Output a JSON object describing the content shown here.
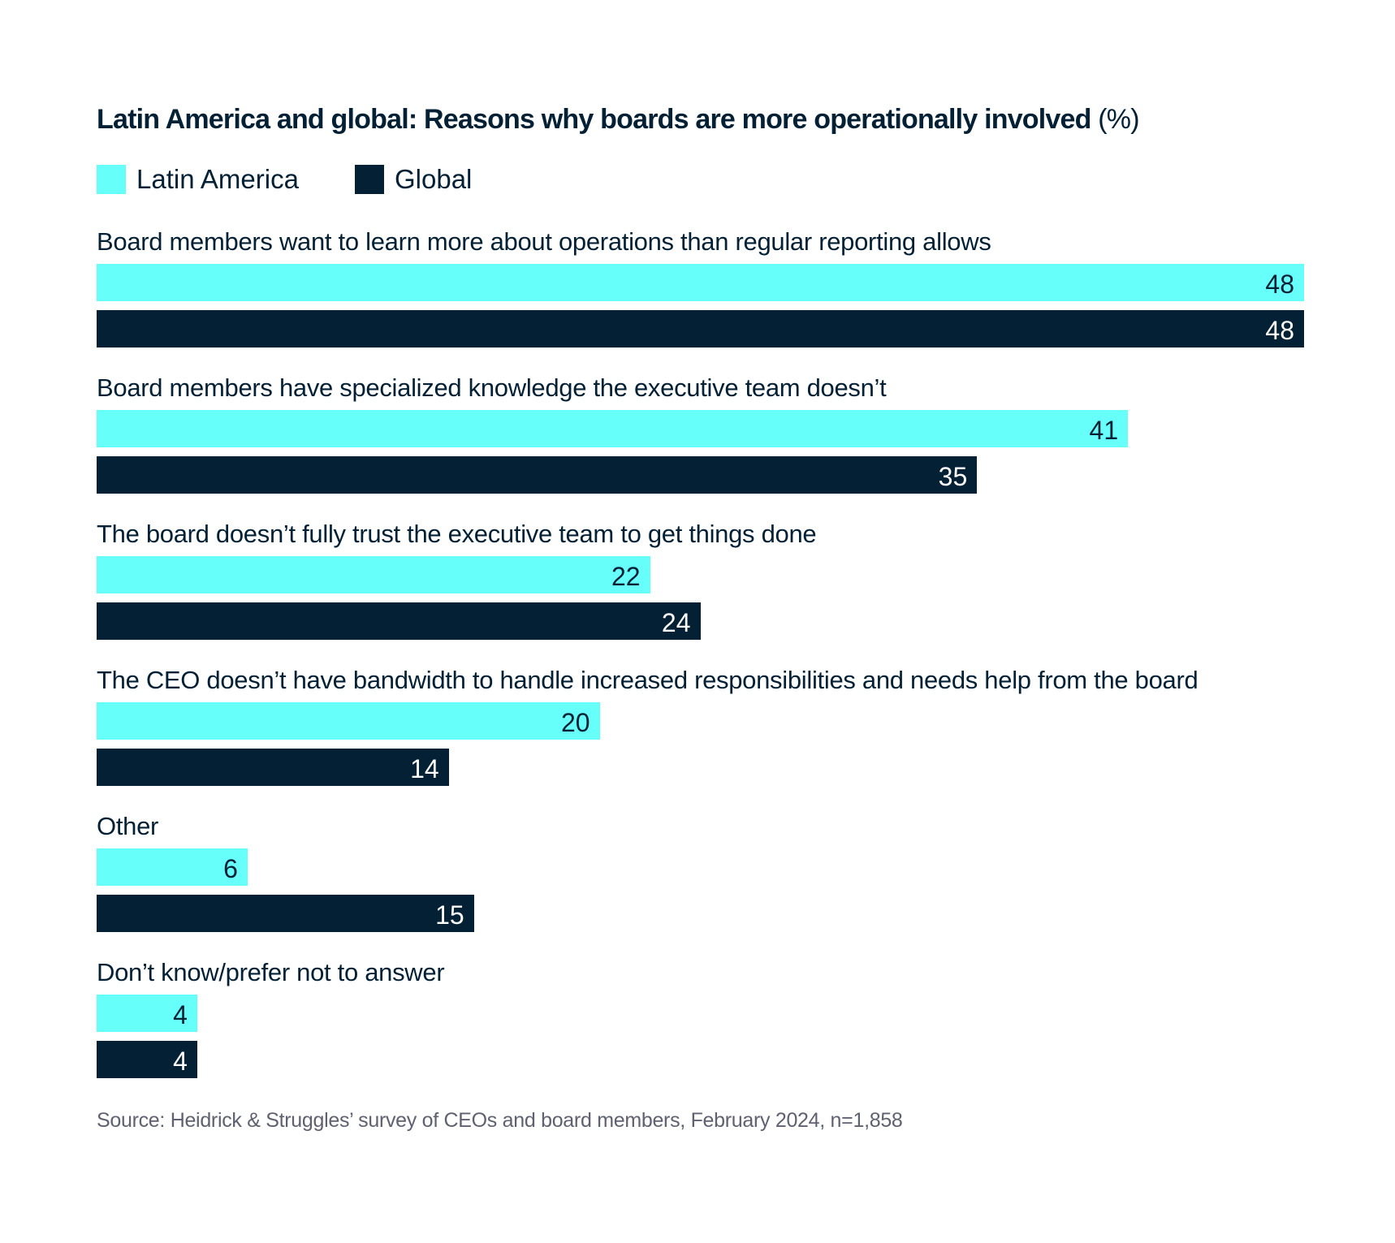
{
  "chart_data": {
    "type": "bar",
    "orientation": "horizontal",
    "title": "Latin America and global: Reasons why boards are more operationally involved",
    "title_unit": "(%)",
    "categories": [
      "Board members want to learn more about operations than regular reporting allows",
      "Board members have specialized knowledge the executive team doesn’t",
      "The board doesn’t fully trust the executive team to get things done",
      "The CEO doesn’t have bandwidth to handle increased responsibilities and needs help from the board",
      "Other",
      "Don’t know/prefer not to answer"
    ],
    "series": [
      {
        "name": "Latin America",
        "color": "#66FFFA",
        "label_color": "#032035",
        "values": [
          48,
          41,
          22,
          20,
          6,
          4
        ]
      },
      {
        "name": "Global",
        "color": "#032035",
        "label_color": "#FFFFFF",
        "values": [
          48,
          35,
          24,
          14,
          15,
          4
        ]
      }
    ],
    "xlim": [
      0,
      48
    ],
    "grid": false,
    "legend": "top-left",
    "data_labels": true
  },
  "source": "Source: Heidrick & Struggles’ survey of CEOs and board members, February 2024, n=1,858"
}
